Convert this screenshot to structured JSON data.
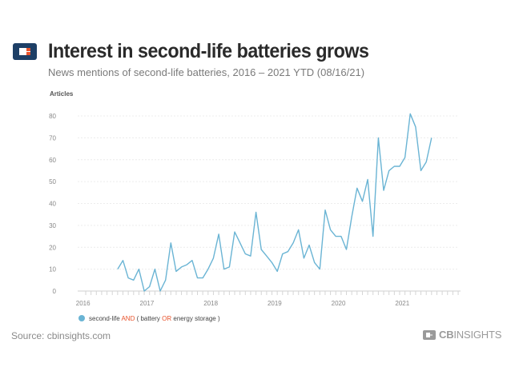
{
  "header": {
    "title": "Interest in second-life batteries grows",
    "subtitle": "News mentions of second-life batteries, 2016 – 2021 YTD (08/16/21)"
  },
  "footer": {
    "source": "Source: cbinsights.com",
    "brand_bold": "CB",
    "brand_rest": "INSIGHTS"
  },
  "colors": {
    "line": "#6ab4d4",
    "logo_dark": "#1d3f66",
    "logo_accent": "#e8532c",
    "legend_keyword": "#e8532c",
    "grid": "#ececec"
  },
  "chart_data": {
    "type": "line",
    "ylabel": "Articles",
    "ylim": [
      0,
      80
    ],
    "yticks": [
      0,
      10,
      20,
      30,
      40,
      50,
      60,
      70,
      80
    ],
    "year_labels": [
      "2016",
      "2017",
      "2018",
      "2019",
      "2020",
      "2021"
    ],
    "grid": "horizontal dotted",
    "legend": {
      "position": "bottom-left",
      "parts": [
        {
          "text": "second-life ",
          "highlight": false
        },
        {
          "text": "AND",
          "highlight": true
        },
        {
          "text": " ( battery ",
          "highlight": false
        },
        {
          "text": "OR",
          "highlight": true
        },
        {
          "text": " energy storage )",
          "highlight": false
        }
      ]
    },
    "series": [
      {
        "name": "second-life AND ( battery OR energy storage )",
        "start": "2016-07",
        "values": [
          10,
          14,
          6,
          5,
          10,
          0,
          2,
          10,
          0,
          5,
          22,
          9,
          11,
          12,
          14,
          6,
          6,
          10,
          15,
          26,
          10,
          11,
          27,
          22,
          17,
          16,
          36,
          19,
          16,
          13,
          9,
          17,
          18,
          22,
          28,
          15,
          21,
          13,
          10,
          37,
          28,
          25,
          25,
          19,
          34,
          47,
          41,
          51,
          25,
          70,
          46,
          55,
          57,
          57,
          61,
          81,
          75,
          55,
          59,
          70
        ]
      }
    ]
  }
}
